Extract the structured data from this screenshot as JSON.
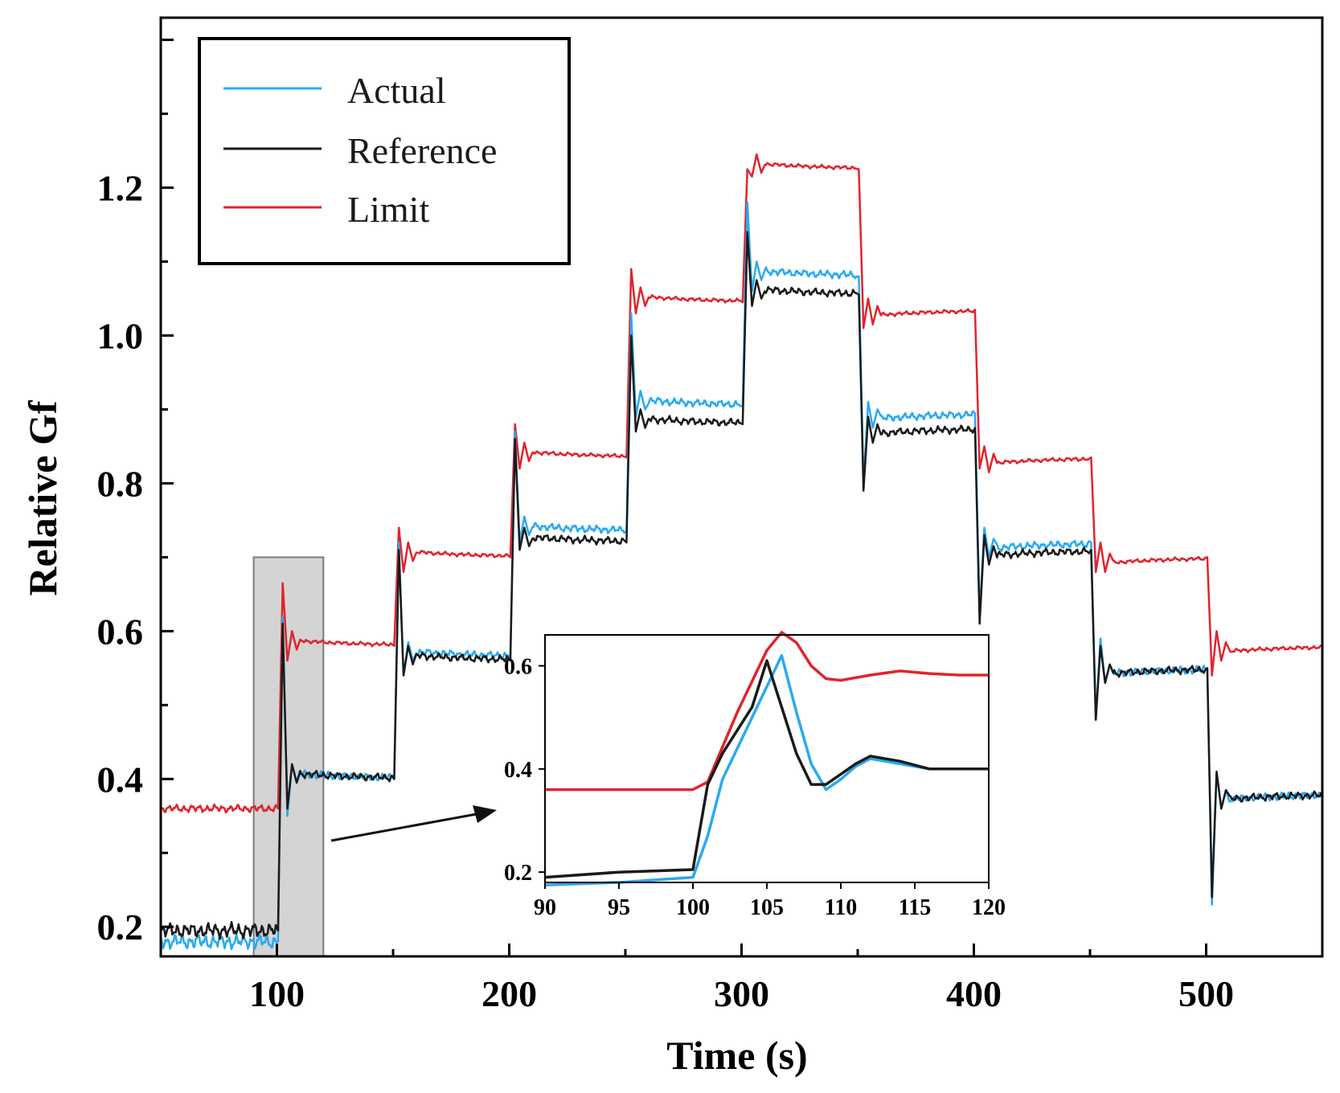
{
  "chart_data": {
    "type": "line",
    "title": "",
    "xlabel": "Time (s)",
    "ylabel": "Relative Gf",
    "xlim": [
      50,
      550
    ],
    "ylim": [
      0.16,
      1.43
    ],
    "xticks": [
      100,
      200,
      300,
      400,
      500
    ],
    "yticks": [
      0.2,
      0.4,
      0.6,
      0.8,
      1.0,
      1.2
    ],
    "ytick_labels": [
      "0.2",
      "0.4",
      "0.6",
      "0.8",
      "1.0",
      "1.2"
    ],
    "legend": {
      "position": "top-left",
      "entries": [
        {
          "name": "Actual",
          "color": "#29aaf0"
        },
        {
          "name": "Reference",
          "color": "#1a1a1a"
        },
        {
          "name": "Limit",
          "color": "#e0242c"
        }
      ]
    },
    "series": [
      {
        "name": "Actual",
        "color": "#29aaf0",
        "steps": [
          {
            "t": 50,
            "v": 0.18
          },
          {
            "t": 100,
            "v": 0.4,
            "peak": 0.62,
            "dip": 0.36
          },
          {
            "t": 150,
            "v": 0.565,
            "peak": 0.72,
            "dip": 0.55
          },
          {
            "t": 200,
            "v": 0.735,
            "peak": 0.87,
            "dip": 0.73
          },
          {
            "t": 250,
            "v": 0.905,
            "peak": 1.03,
            "dip": 0.9
          },
          {
            "t": 300,
            "v": 1.08,
            "peak": 1.18,
            "dip": 1.07
          },
          {
            "t": 350,
            "v": 0.895,
            "dip": 0.8,
            "peak": 0.9
          },
          {
            "t": 400,
            "v": 0.72,
            "dip": 0.62,
            "peak": 0.73
          },
          {
            "t": 450,
            "v": 0.55,
            "dip": 0.48,
            "peak": 0.58
          },
          {
            "t": 500,
            "v": 0.38,
            "dip": 0.23,
            "peak": 0.4
          }
        ]
      },
      {
        "name": "Reference",
        "color": "#1a1a1a",
        "steps": [
          {
            "t": 50,
            "v": 0.195
          },
          {
            "t": 100,
            "v": 0.4,
            "peak": 0.61,
            "dip": 0.37
          },
          {
            "t": 150,
            "v": 0.56,
            "peak": 0.71,
            "dip": 0.55
          },
          {
            "t": 200,
            "v": 0.72,
            "peak": 0.86,
            "dip": 0.72
          },
          {
            "t": 250,
            "v": 0.88,
            "peak": 1.0,
            "dip": 0.88
          },
          {
            "t": 300,
            "v": 1.055,
            "peak": 1.14,
            "dip": 1.05
          },
          {
            "t": 350,
            "v": 0.875,
            "dip": 0.79,
            "peak": 0.88
          },
          {
            "t": 400,
            "v": 0.71,
            "dip": 0.61,
            "peak": 0.72
          },
          {
            "t": 450,
            "v": 0.55,
            "dip": 0.48,
            "peak": 0.57
          },
          {
            "t": 500,
            "v": 0.38,
            "dip": 0.24,
            "peak": 0.4
          }
        ]
      },
      {
        "name": "Limit",
        "color": "#e0242c",
        "steps": [
          {
            "t": 50,
            "v": 0.36
          },
          {
            "t": 100,
            "v": 0.58,
            "peak": 0.665,
            "dip": 0.57
          },
          {
            "t": 150,
            "v": 0.7,
            "peak": 0.74,
            "dip": 0.69
          },
          {
            "t": 200,
            "v": 0.835,
            "peak": 0.88,
            "dip": 0.83
          },
          {
            "t": 250,
            "v": 1.045,
            "peak": 1.09,
            "dip": 1.04
          },
          {
            "t": 300,
            "v": 1.225,
            "peak": 1.225,
            "dip": 1.225
          },
          {
            "t": 350,
            "v": 1.035,
            "dip": 1.01,
            "peak": 1.04
          },
          {
            "t": 400,
            "v": 0.835,
            "dip": 0.82,
            "peak": 0.84
          },
          {
            "t": 450,
            "v": 0.7,
            "dip": 0.68,
            "peak": 0.71
          },
          {
            "t": 500,
            "v": 0.58,
            "dip": 0.54,
            "peak": 0.59
          }
        ]
      }
    ],
    "highlight_region": {
      "x": [
        90,
        120
      ],
      "y": [
        0.16,
        0.7
      ]
    },
    "inset": {
      "xlim": [
        90,
        120
      ],
      "ylim": [
        0.18,
        0.66
      ],
      "xticks": [
        90,
        95,
        100,
        105,
        110,
        115,
        120
      ],
      "yticks": [
        0.2,
        0.4,
        0.6
      ],
      "ytick_labels": [
        "0.2",
        "0.4",
        "0.6"
      ],
      "series": [
        {
          "name": "Limit",
          "color": "#e0242c",
          "x": [
            90,
            95,
            100,
            101,
            103,
            105,
            106,
            107,
            108,
            109,
            110,
            112,
            114,
            116,
            118,
            120
          ],
          "y": [
            0.36,
            0.36,
            0.36,
            0.375,
            0.51,
            0.63,
            0.665,
            0.645,
            0.6,
            0.575,
            0.572,
            0.582,
            0.59,
            0.585,
            0.582,
            0.582
          ]
        },
        {
          "name": "Actual",
          "color": "#29aaf0",
          "x": [
            90,
            95,
            100,
            101,
            102,
            104,
            106,
            107,
            108,
            109,
            110,
            111,
            112,
            114,
            116,
            118,
            120
          ],
          "y": [
            0.175,
            0.18,
            0.19,
            0.27,
            0.38,
            0.5,
            0.62,
            0.51,
            0.41,
            0.36,
            0.38,
            0.405,
            0.42,
            0.41,
            0.4,
            0.4,
            0.4
          ]
        },
        {
          "name": "Reference",
          "color": "#1a1a1a",
          "x": [
            90,
            95,
            100,
            101,
            102,
            104,
            105,
            106,
            107,
            108,
            109,
            110,
            111,
            112,
            114,
            116,
            118,
            120
          ],
          "y": [
            0.19,
            0.2,
            0.205,
            0.37,
            0.43,
            0.52,
            0.61,
            0.52,
            0.43,
            0.37,
            0.37,
            0.39,
            0.41,
            0.425,
            0.415,
            0.4,
            0.4,
            0.4
          ]
        }
      ]
    }
  }
}
